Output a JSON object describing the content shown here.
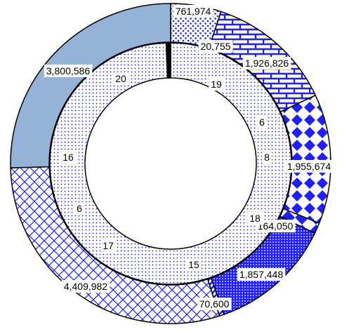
{
  "chart_data": {
    "type": "pie",
    "subtype": "doughnut",
    "title": "",
    "legend": "none",
    "series": [
      {
        "ring": "outer",
        "values": [
          761974,
          1926826,
          1955674,
          164050,
          1857448,
          70600,
          4409982,
          3800586
        ],
        "labels": [
          "761,974",
          "1,926,826",
          "1,955,674",
          "164,050",
          "1,857,448",
          "70,600",
          "4,409,982",
          "3,800,586"
        ]
      },
      {
        "ring": "inner",
        "values": [
          20755,
          19,
          6,
          8,
          18,
          15,
          17,
          6,
          16,
          20
        ],
        "labels": [
          "20,755",
          "19",
          "6",
          "8",
          "18",
          "15",
          "17",
          "6",
          "16",
          "20"
        ]
      }
    ],
    "colors": {
      "accent_blue": "#1f1fff",
      "steel_blue": "#95b3d7",
      "pale_yellow": "#ffffcc",
      "outline": "#000000"
    }
  }
}
